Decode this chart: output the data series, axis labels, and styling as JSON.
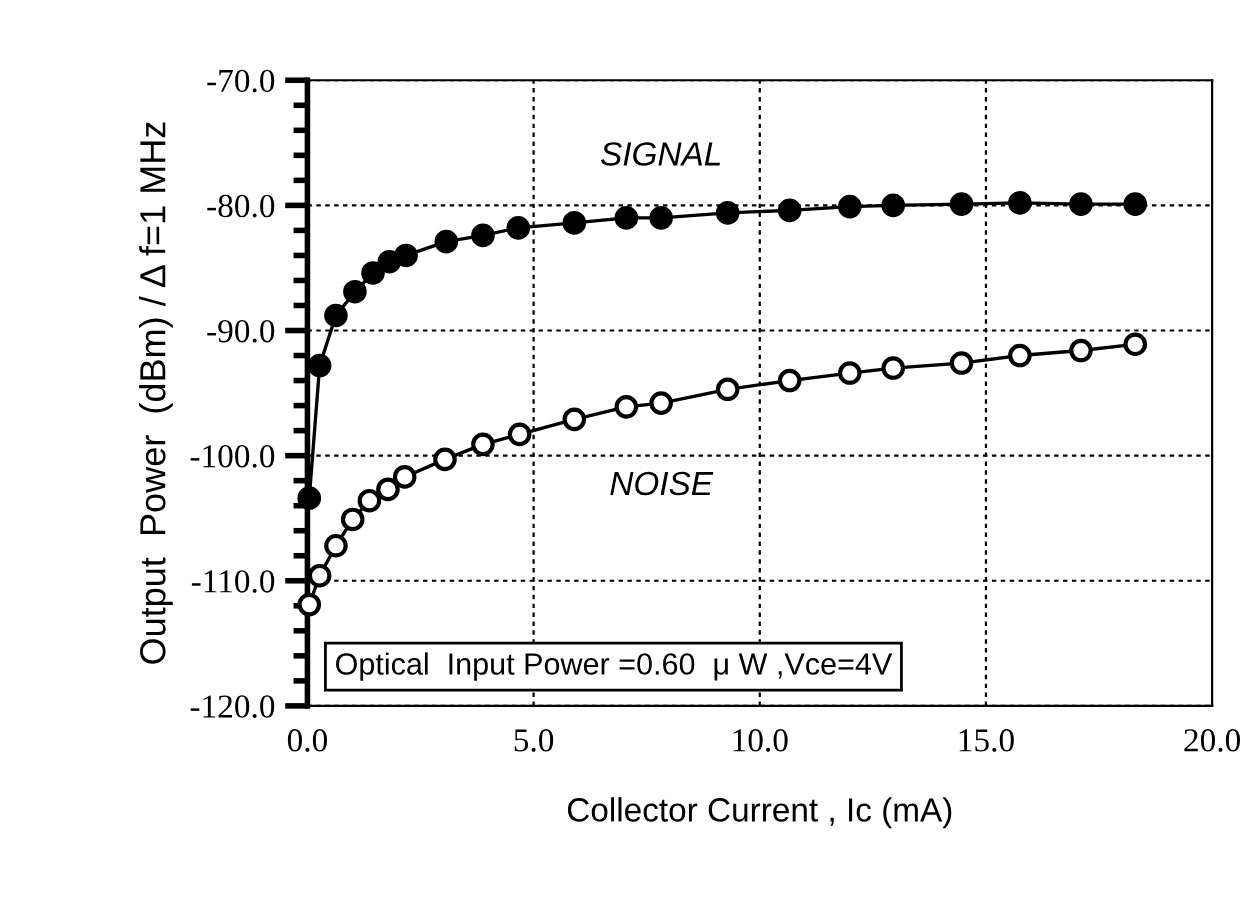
{
  "chart_data": {
    "type": "line",
    "xlabel": "Collector Current , Ic (mA)",
    "ylabel": "Output  Power  (dBm) / Δ f=1 MHz",
    "annotations": [
      "Optical  Input Power =0.60  μ W ,Vce=4V"
    ],
    "xlim": [
      0,
      20
    ],
    "ylim": [
      -120,
      -70
    ],
    "xticks": [
      {
        "value": 0,
        "label": "0.0"
      },
      {
        "value": 5,
        "label": "5.0"
      },
      {
        "value": 10,
        "label": "10.0"
      },
      {
        "value": 15,
        "label": "15.0"
      },
      {
        "value": 20,
        "label": "20.0"
      }
    ],
    "yticks": [
      {
        "value": -120,
        "label": "-120.0"
      },
      {
        "value": -110,
        "label": "-110.0"
      },
      {
        "value": -100,
        "label": "-100.0"
      },
      {
        "value": -90,
        "label": "-90.0"
      },
      {
        "value": -80,
        "label": "-80.0"
      },
      {
        "value": -70,
        "label": "-70.0"
      }
    ],
    "grid": true,
    "legend": false,
    "marker": "circle",
    "line_style": "solid",
    "series": [
      {
        "name": "SIGNAL",
        "color": "#000000",
        "x": [
          0.04,
          0.27,
          0.63,
          1.05,
          1.45,
          1.81,
          2.18,
          3.07,
          3.88,
          4.66,
          5.9,
          7.05,
          7.82,
          9.29,
          10.66,
          11.99,
          12.95,
          14.46,
          15.75,
          17.1,
          18.3
        ],
        "values": [
          -103.4,
          -92.8,
          -88.8,
          -86.9,
          -85.4,
          -84.5,
          -84.0,
          -82.9,
          -82.4,
          -81.8,
          -81.4,
          -81.0,
          -81.0,
          -80.6,
          -80.4,
          -80.1,
          -80.0,
          -79.9,
          -79.8,
          -79.9,
          -79.9
        ]
      },
      {
        "name": "NOISE",
        "color": "#000000",
        "x": [
          0.04,
          0.27,
          0.63,
          1.0,
          1.37,
          1.78,
          2.15,
          3.04,
          3.88,
          4.69,
          5.9,
          7.05,
          7.82,
          9.29,
          10.66,
          11.99,
          12.95,
          14.46,
          15.75,
          17.1,
          18.3
        ],
        "values": [
          -111.9,
          -109.6,
          -107.2,
          -105.1,
          -103.6,
          -102.7,
          -101.7,
          -100.3,
          -99.1,
          -98.3,
          -97.1,
          -96.1,
          -95.8,
          -94.7,
          -94.0,
          -93.4,
          -93.0,
          -92.6,
          -92.0,
          -91.6,
          -91.1
        ]
      }
    ]
  }
}
